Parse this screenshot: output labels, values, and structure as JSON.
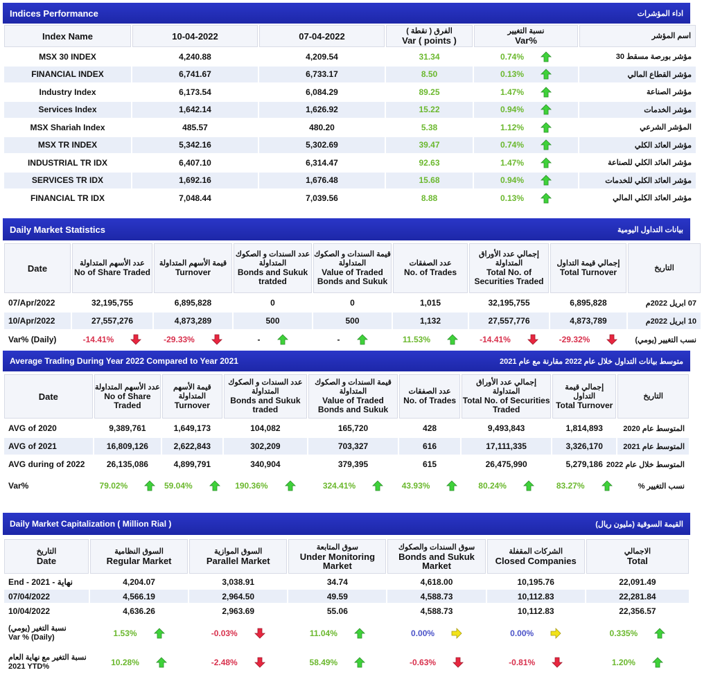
{
  "indices": {
    "title": "Indices Performance",
    "title_ar": "اداء المؤشرات",
    "headers": {
      "name": "Index Name",
      "d1": "10-04-2022",
      "d2": "07-04-2022",
      "var_ar": "الفرق ( نقطة )",
      "var": "Var ( points )",
      "pct_ar": "نسبة التغيير",
      "pct": "Var%",
      "name_ar": "اسم المؤشر"
    },
    "rows": [
      {
        "name": "MSX 30 INDEX",
        "d1": "4,240.88",
        "d2": "4,209.54",
        "var": "31.34",
        "pct": "0.74%",
        "name_ar": "مؤشر بورصة مسقط 30"
      },
      {
        "name": "FINANCIAL INDEX",
        "d1": "6,741.67",
        "d2": "6,733.17",
        "var": "8.50",
        "pct": "0.13%",
        "name_ar": "مؤشر القطاع المالي"
      },
      {
        "name": "Industry Index",
        "d1": "6,173.54",
        "d2": "6,084.29",
        "var": "89.25",
        "pct": "1.47%",
        "name_ar": "مؤشر الصناعة"
      },
      {
        "name": "Services Index",
        "d1": "1,642.14",
        "d2": "1,626.92",
        "var": "15.22",
        "pct": "0.94%",
        "name_ar": "مؤشر الخدمات"
      },
      {
        "name": "MSX Shariah Index",
        "d1": "485.57",
        "d2": "480.20",
        "var": "5.38",
        "pct": "1.12%",
        "name_ar": "المؤشر الشرعي"
      },
      {
        "name": "MSX TR INDEX",
        "d1": "5,342.16",
        "d2": "5,302.69",
        "var": "39.47",
        "pct": "0.74%",
        "name_ar": "مؤشر العائد الكلي"
      },
      {
        "name": "INDUSTRIAL TR IDX",
        "d1": "6,407.10",
        "d2": "6,314.47",
        "var": "92.63",
        "pct": "1.47%",
        "name_ar": "مؤشر العائد الكلي للصناعة"
      },
      {
        "name": "SERVICES TR IDX",
        "d1": "1,692.16",
        "d2": "1,676.48",
        "var": "15.68",
        "pct": "0.94%",
        "name_ar": "مؤشر العائد الكلي للخدمات"
      },
      {
        "name": "FINANCIAL TR IDX",
        "d1": "7,048.44",
        "d2": "7,039.56",
        "var": "8.88",
        "pct": "0.13%",
        "name_ar": "مؤشر العائد الكلي المالي"
      }
    ]
  },
  "daily": {
    "title": "Daily Market Statistics",
    "title_ar": "بيانات التداول اليومية",
    "headers": [
      {
        "ar": "",
        "en": "Date"
      },
      {
        "ar": "عدد الأسهم المتداولة",
        "en": "No of Share Traded"
      },
      {
        "ar": "قيمة الأسهم المتداولة",
        "en": "Turnover"
      },
      {
        "ar": "عدد السندات و الصكوك المتداولة",
        "en": "Bonds and Sukuk tratded"
      },
      {
        "ar": "قيمة السندات و الصكوك المتداولة",
        "en": "Value of Traded Bonds and Sukuk"
      },
      {
        "ar": "عدد الصفقات",
        "en": "No. of Trades"
      },
      {
        "ar": "إجمالي عدد الأوراق المتداولة",
        "en": "Total No. of Securities Traded"
      },
      {
        "ar": "إجمالي قيمة التداول",
        "en": "Total Turnover"
      },
      {
        "ar": "التاريخ",
        "en": ""
      }
    ],
    "rows": [
      {
        "date": "07/Apr/2022",
        "shares": "32,195,755",
        "turnover": "6,895,828",
        "bonds": "0",
        "bonds_val": "0",
        "trades": "1,015",
        "securities": "32,195,755",
        "total": "6,895,828",
        "date_ar": "07 ابريل 2022م"
      },
      {
        "date": "10/Apr/2022",
        "shares": "27,557,276",
        "turnover": "4,873,289",
        "bonds": "500",
        "bonds_val": "500",
        "trades": "1,132",
        "securities": "27,557,776",
        "total": "4,873,789",
        "date_ar": "10 ابريل 2022م"
      }
    ],
    "var": {
      "label": "Var% (Daily)",
      "shares": "-14.41%",
      "turnover": "-29.33%",
      "bonds": "-",
      "bonds_val": "-",
      "trades": "11.53%",
      "securities": "-14.41%",
      "total": "-29.32%",
      "label_ar": "نسب التغيير (يومي)"
    }
  },
  "avg": {
    "title": "Average Trading During Year 2022 Compared to Year 2021",
    "title_ar": "متوسط بيانات التداول خلال عام 2022 مقارنة مع عام 2021",
    "headers": [
      {
        "ar": "",
        "en": "Date"
      },
      {
        "ar": "عدد الأسهم المتداولة",
        "en": "No of Share Traded"
      },
      {
        "ar": "قيمة الأسهم المتداولة",
        "en": "Turnover"
      },
      {
        "ar": "عدد السندات و الصكوك المتداولة",
        "en": "Bonds and Sukuk traded"
      },
      {
        "ar": "قيمة السندات و الصكوك المتداولة",
        "en": "Value of Traded Bonds and Sukuk"
      },
      {
        "ar": "عدد الصفقات",
        "en": "No. of Trades"
      },
      {
        "ar": "إجمالي عدد الأوراق المتداولة",
        "en": "Total No. of Securities Traded"
      },
      {
        "ar": "إجمالي قيمة التداول",
        "en": "Total Turnover"
      },
      {
        "ar": "التاريخ",
        "en": ""
      }
    ],
    "rows": [
      {
        "date": "AVG of 2020",
        "shares": "9,389,761",
        "turnover": "1,649,173",
        "bonds": "104,082",
        "bonds_val": "165,720",
        "trades": "428",
        "securities": "9,493,843",
        "total": "1,814,893",
        "date_ar": "المتوسط عام 2020"
      },
      {
        "date": "AVG of 2021",
        "shares": "16,809,126",
        "turnover": "2,622,843",
        "bonds": "302,209",
        "bonds_val": "703,327",
        "trades": "616",
        "securities": "17,111,335",
        "total": "3,326,170",
        "date_ar": "المتوسط عام 2021"
      },
      {
        "date": "AVG during of 2022",
        "shares": "26,135,086",
        "turnover": "4,899,791",
        "bonds": "340,904",
        "bonds_val": "379,395",
        "trades": "615",
        "securities": "26,475,990",
        "total": "5,279,186",
        "date_ar": "المتوسط خلال عام 2022"
      }
    ],
    "var": {
      "label": "Var%",
      "shares": "79.02%",
      "turnover": "59.04%",
      "bonds": "190.36%",
      "bonds_val": "324.41%",
      "trades": "43.93%",
      "securities": "80.24%",
      "total": "83.27%",
      "label_ar": "نسب التغيير %"
    }
  },
  "cap": {
    "title": "Daily Market Capitalization ( Million Rial )",
    "title_ar": "القيمة السوقية (مليون ريال)",
    "headers": [
      {
        "ar": "التاريخ",
        "en": "Date"
      },
      {
        "ar": "السوق النظامية",
        "en": "Regular Market"
      },
      {
        "ar": "السوق الموازية",
        "en": "Parallel Market"
      },
      {
        "ar": "سوق المتابعة",
        "en": "Under Monitoring Market"
      },
      {
        "ar": "سوق السندات والصكوك",
        "en": "Bonds and Sukuk Market"
      },
      {
        "ar": "الشركات المقفلة",
        "en": "Closed Companies"
      },
      {
        "ar": "الاجمالي",
        "en": "Total"
      }
    ],
    "rows": [
      {
        "date": "End - 2021 - نهاية",
        "regular": "4,204.07",
        "parallel": "3,038.91",
        "monitor": "34.74",
        "bonds": "4,618.00",
        "closed": "10,195.76",
        "total": "22,091.49"
      },
      {
        "date": "07/04/2022",
        "regular": "4,566.19",
        "parallel": "2,964.50",
        "monitor": "49.59",
        "bonds": "4,588.73",
        "closed": "10,112.83",
        "total": "22,281.84"
      },
      {
        "date": "10/04/2022",
        "regular": "4,636.26",
        "parallel": "2,963.69",
        "monitor": "55.06",
        "bonds": "4,588.73",
        "closed": "10,112.83",
        "total": "22,356.57"
      }
    ],
    "var_daily": {
      "label_ar": "نسبة التغير (يومي)",
      "label": "Var % (Daily)",
      "regular": "1.53%",
      "parallel": "-0.03%",
      "monitor": "11.04%",
      "bonds": "0.00%",
      "closed": "0.00%",
      "total": "0.335%"
    },
    "var_ytd": {
      "label_ar": "نسبة التغير مع نهاية العام",
      "label": "2021 YTD%",
      "regular": "10.28%",
      "parallel": "-2.48%",
      "monitor": "58.49%",
      "bonds": "-0.63%",
      "closed": "-0.81%",
      "total": "1.20%"
    }
  },
  "colors": {
    "header_bar": "#1d27a8",
    "up": "#6bb82e",
    "down": "#d8314d",
    "flat": "#4a52c8",
    "flat_arrow": "#f2e31a"
  }
}
